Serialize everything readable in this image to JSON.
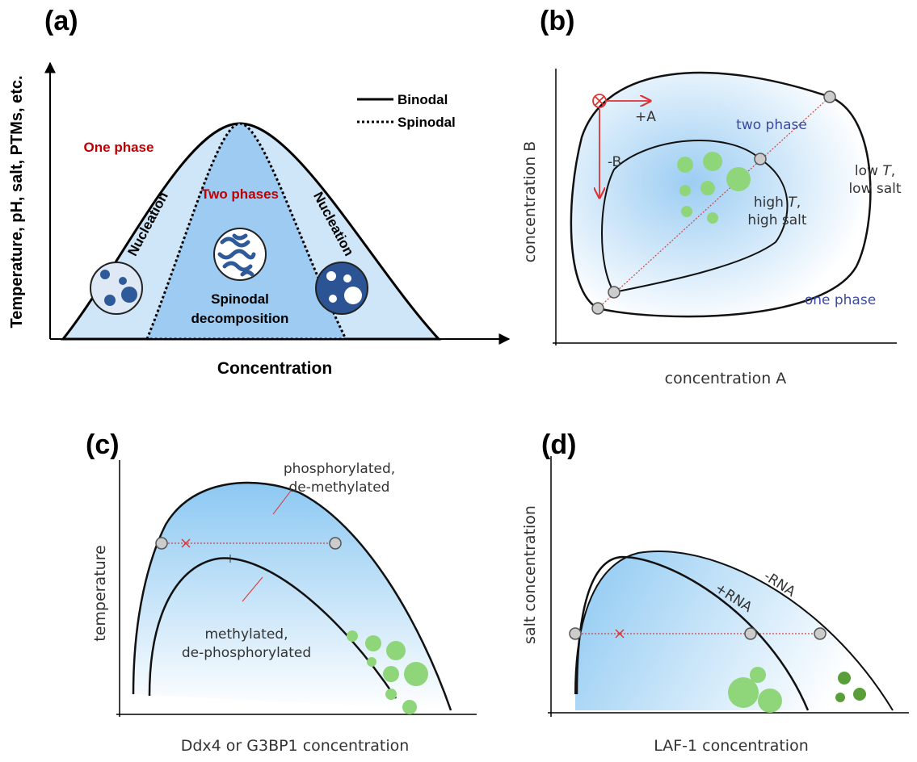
{
  "panel_a": {
    "label": "(a)",
    "y_axis_label": "Temperature, pH, salt, PTMs, etc.",
    "x_axis_label": "Concentration",
    "legend": [
      "Binodal",
      "Spinodal"
    ],
    "one_phase": "One phase",
    "two_phases": "Two phases",
    "nucleation": [
      "Nucleation",
      "Nucleation"
    ],
    "spinodal_decomposition": [
      "Spinodal",
      "decomposition"
    ]
  },
  "panel_b": {
    "label": "(b)",
    "y_axis_label": "concentration B",
    "x_axis_label": "concentration A",
    "plus_a": "+A",
    "minus_b": "-B",
    "two_phase": "two phase",
    "one_phase": "one phase",
    "high_t": {
      "prefix": "high",
      "italic": "T",
      "suffix": ",",
      "line2": "high salt"
    },
    "low_t": {
      "prefix": "low",
      "italic": "T",
      "suffix": ",",
      "line2": "low salt"
    }
  },
  "panel_c": {
    "label": "(c)",
    "y_axis_label": "temperature",
    "x_axis_label": "Ddx4 or G3BP1 concentration",
    "outer_curve": [
      "phosphorylated,",
      "de-methylated"
    ],
    "inner_curve": [
      "methylated,",
      "de-phosphorylated"
    ]
  },
  "panel_d": {
    "label": "(d)",
    "y_axis_label": "salt concentration",
    "x_axis_label": "LAF-1 concentration",
    "plus_rna": "+RNA",
    "minus_rna": "-RNA"
  }
}
